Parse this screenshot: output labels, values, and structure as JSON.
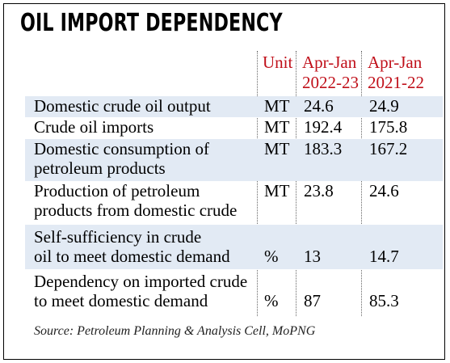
{
  "title": "OIL IMPORT DEPENDENCY",
  "columns": {
    "unit": "Unit",
    "period1_line1": "Apr-Jan",
    "period1_line2": "2022-23",
    "period2_line1": "Apr-Jan",
    "period2_line2": "2021-22"
  },
  "rows": [
    {
      "label_line1": "Domestic crude oil output",
      "label_line2": "",
      "unit": "MT",
      "v2022_23": "24.6",
      "v2021_22": "24.9"
    },
    {
      "label_line1": "Crude oil imports",
      "label_line2": "",
      "unit": "MT",
      "v2022_23": "192.4",
      "v2021_22": "175.8"
    },
    {
      "label_line1": "Domestic consumption of",
      "label_line2": "petroleum products",
      "unit": "MT",
      "v2022_23": "183.3",
      "v2021_22": "167.2"
    },
    {
      "label_line1": "Production of petroleum",
      "label_line2": "products from domestic crude",
      "unit": "MT",
      "v2022_23": "23.8",
      "v2021_22": "24.6"
    },
    {
      "label_line1": "Self-sufficiency in crude",
      "label_line2": "oil to meet domestic demand",
      "unit": "%",
      "v2022_23": "13",
      "v2021_22": "14.7"
    },
    {
      "label_line1": "Dependency on imported crude",
      "label_line2": "to meet domestic demand",
      "unit": "%",
      "v2022_23": "87",
      "v2021_22": "85.3"
    }
  ],
  "source": "Source: Petroleum Planning & Analysis Cell, MoPNG"
}
